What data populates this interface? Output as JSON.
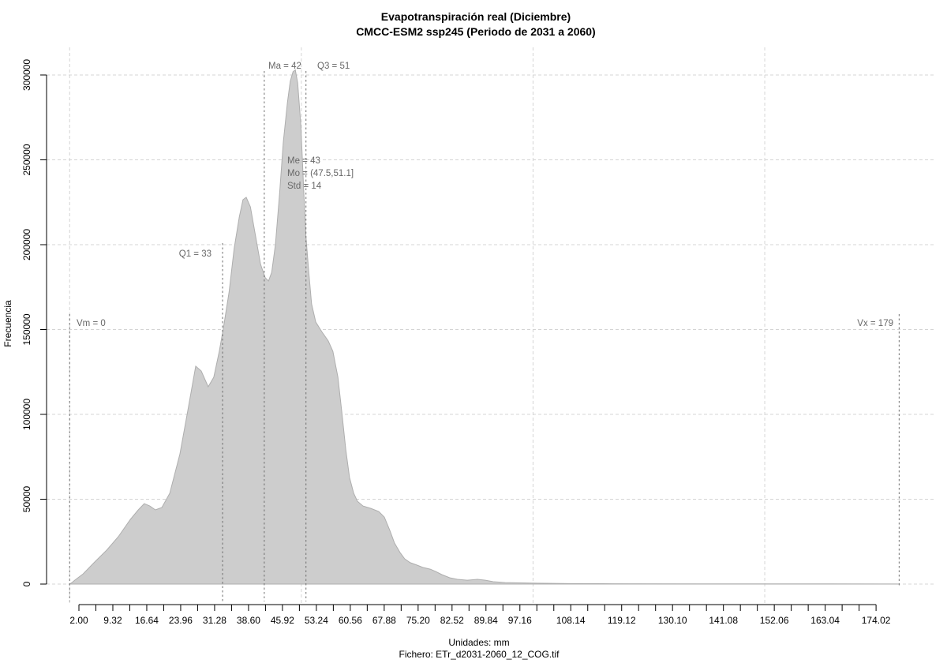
{
  "title": {
    "line1": "Evapotranspiración real (Diciembre)",
    "line2": "CMCC-ESM2 ssp245 (Periodo de 2031 a 2060)"
  },
  "footer": {
    "units": "Unidades: mm",
    "file": "Fichero: ETr_d2031-2060_12_COG.tif"
  },
  "chart_data": {
    "type": "area",
    "title": "Evapotranspiración real (Diciembre)",
    "subtitle": "CMCC-ESM2 ssp245 (Periodo de 2031 a 2060)",
    "xlabel": "Unidades: mm",
    "ylabel": "Frecuencia",
    "ylim": [
      0,
      300000
    ],
    "xlim": [
      0,
      179
    ],
    "grid": true,
    "legend": "none",
    "y_ticks": [
      0,
      50000,
      100000,
      150000,
      200000,
      250000,
      300000
    ],
    "y_tick_labels": [
      "0",
      "50000",
      "100000",
      "150000",
      "200000",
      "250000",
      "300000"
    ],
    "x_axis_start": 2.0,
    "x_tick_step": 3.66,
    "x_tick_count": 48,
    "x_tick_labels": [
      "2.00",
      "9.32",
      "16.64",
      "23.96",
      "31.28",
      "38.60",
      "45.92",
      "53.24",
      "60.56",
      "67.88",
      "75.20",
      "82.52",
      "89.84",
      "97.16",
      "108.14",
      "119.12",
      "130.10",
      "141.08",
      "152.06",
      "163.04",
      "174.02"
    ],
    "grid_x_values": [
      0,
      50,
      100,
      150
    ],
    "stats": {
      "Vm": 0,
      "Q1": 33,
      "Ma": 42,
      "Me": 43,
      "Mo": "(47.5,51.1]",
      "Std": 14,
      "Q3": 51,
      "Vx": 179
    },
    "annotations": {
      "vm": {
        "label": "Vm = 0",
        "value": 0
      },
      "q1": {
        "label": "Q1 = 33",
        "value": 33
      },
      "ma": {
        "label": "Ma = 42",
        "value": 42
      },
      "q3": {
        "label": "Q3 = 51",
        "value": 51
      },
      "vx": {
        "label": "Vx = 179",
        "value": 179
      },
      "stats_lines": [
        "Me = 43",
        "Mo = (47.5,51.1]",
        "Std = 14"
      ]
    },
    "series": [
      {
        "name": "Frecuencia",
        "points": [
          [
            0,
            0
          ],
          [
            0.5,
            900
          ],
          [
            1.1,
            2300
          ],
          [
            2.9,
            6000
          ],
          [
            5.4,
            13000
          ],
          [
            8.0,
            20000
          ],
          [
            10.5,
            27900
          ],
          [
            13.1,
            38100
          ],
          [
            14.8,
            43700
          ],
          [
            16.1,
            47400
          ],
          [
            17.3,
            46000
          ],
          [
            18.5,
            43700
          ],
          [
            19.9,
            45100
          ],
          [
            21.6,
            53500
          ],
          [
            23.8,
            76700
          ],
          [
            25.5,
            102300
          ],
          [
            27.2,
            128400
          ],
          [
            28.4,
            125600
          ],
          [
            29.9,
            116300
          ],
          [
            31.1,
            121900
          ],
          [
            32.3,
            137200
          ],
          [
            33.2,
            151200
          ],
          [
            34.4,
            172100
          ],
          [
            35.5,
            197700
          ],
          [
            36.6,
            216300
          ],
          [
            37.4,
            226500
          ],
          [
            38.1,
            227900
          ],
          [
            39.0,
            222300
          ],
          [
            40.0,
            207000
          ],
          [
            41.2,
            188400
          ],
          [
            42.2,
            180500
          ],
          [
            42.9,
            178600
          ],
          [
            43.6,
            183700
          ],
          [
            44.4,
            200000
          ],
          [
            45.3,
            230200
          ],
          [
            46.1,
            260500
          ],
          [
            47.0,
            283700
          ],
          [
            47.6,
            296300
          ],
          [
            48.2,
            301900
          ],
          [
            48.7,
            303000
          ],
          [
            49.2,
            295400
          ],
          [
            49.9,
            269800
          ],
          [
            50.5,
            232600
          ],
          [
            51.0,
            204600
          ],
          [
            51.6,
            183700
          ],
          [
            52.2,
            165100
          ],
          [
            53.1,
            154400
          ],
          [
            54.4,
            148800
          ],
          [
            55.8,
            143300
          ],
          [
            56.8,
            137200
          ],
          [
            57.9,
            121900
          ],
          [
            58.7,
            102300
          ],
          [
            59.6,
            79100
          ],
          [
            60.4,
            62800
          ],
          [
            61.3,
            53500
          ],
          [
            62.1,
            48800
          ],
          [
            63.3,
            46000
          ],
          [
            65.0,
            44600
          ],
          [
            66.7,
            42800
          ],
          [
            67.9,
            39500
          ],
          [
            69.1,
            31600
          ],
          [
            70.1,
            24200
          ],
          [
            71.3,
            18600
          ],
          [
            72.3,
            14900
          ],
          [
            73.5,
            12600
          ],
          [
            74.9,
            11200
          ],
          [
            76.2,
            9800
          ],
          [
            77.8,
            8800
          ],
          [
            79.0,
            7400
          ],
          [
            80.3,
            5600
          ],
          [
            82.0,
            3700
          ],
          [
            83.7,
            2800
          ],
          [
            85.8,
            2300
          ],
          [
            88.0,
            2800
          ],
          [
            89.7,
            2300
          ],
          [
            91.4,
            1400
          ],
          [
            94.0,
            900
          ],
          [
            97.4,
            700
          ],
          [
            100.8,
            500
          ],
          [
            107.6,
            300
          ],
          [
            117.8,
            200
          ],
          [
            138.3,
            150
          ],
          [
            163.8,
            100
          ],
          [
            178.5,
            50
          ],
          [
            179.0,
            0
          ]
        ]
      }
    ]
  }
}
